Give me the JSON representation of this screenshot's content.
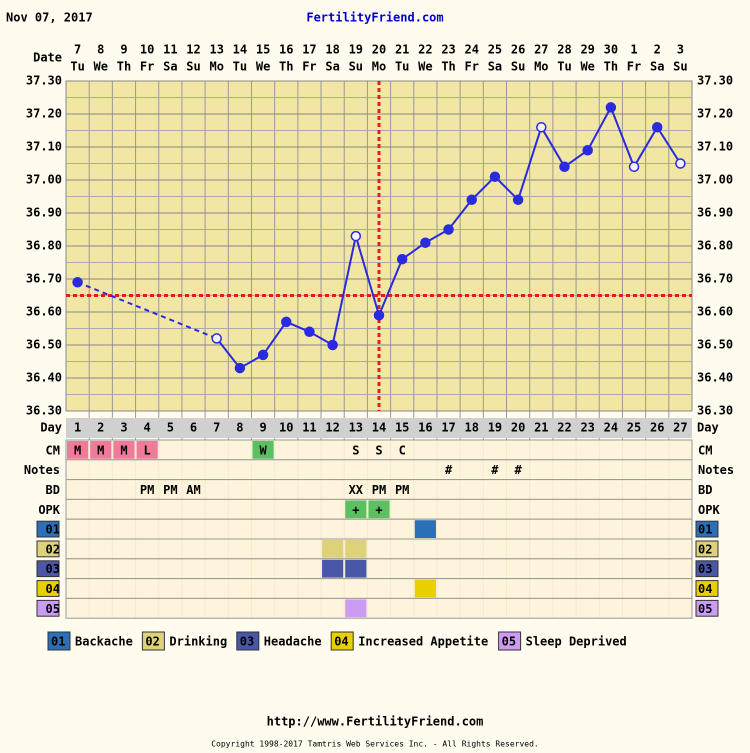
{
  "header": {
    "date": "Nov 07, 2017",
    "site": "FertilityFriend.com"
  },
  "chart_data": {
    "type": "line",
    "x_label": "Date",
    "day_label": "Day",
    "dates": [
      7,
      8,
      9,
      10,
      11,
      12,
      13,
      14,
      15,
      16,
      17,
      18,
      19,
      20,
      21,
      22,
      23,
      24,
      25,
      26,
      27,
      28,
      29,
      30,
      1,
      2,
      3
    ],
    "weekdays": [
      "Tu",
      "We",
      "Th",
      "Fr",
      "Sa",
      "Su",
      "Mo",
      "Tu",
      "We",
      "Th",
      "Fr",
      "Sa",
      "Su",
      "Mo",
      "Tu",
      "We",
      "Th",
      "Fr",
      "Sa",
      "Su",
      "Mo",
      "Tu",
      "We",
      "Th",
      "Fr",
      "Sa",
      "Su"
    ],
    "days": [
      1,
      2,
      3,
      4,
      5,
      6,
      7,
      8,
      9,
      10,
      11,
      12,
      13,
      14,
      15,
      16,
      17,
      18,
      19,
      20,
      21,
      22,
      23,
      24,
      25,
      26,
      27
    ],
    "values": [
      36.69,
      null,
      null,
      null,
      null,
      null,
      36.52,
      36.43,
      36.47,
      36.57,
      36.54,
      36.5,
      36.83,
      36.59,
      36.76,
      36.81,
      36.85,
      36.94,
      37.01,
      36.94,
      37.16,
      37.04,
      37.09,
      37.22,
      37.04,
      37.16,
      37.05
    ],
    "marker_open": [
      false,
      false,
      false,
      false,
      false,
      false,
      true,
      false,
      false,
      false,
      false,
      false,
      true,
      false,
      false,
      false,
      false,
      false,
      false,
      false,
      true,
      false,
      false,
      false,
      true,
      false,
      true
    ],
    "color": "#2a2ae0",
    "ylim": [
      36.3,
      37.3
    ],
    "yticks": [
      {
        "value": 36.3,
        "label": "36.30"
      },
      {
        "value": 36.4,
        "label": "36.40"
      },
      {
        "value": 36.5,
        "label": "36.50"
      },
      {
        "value": 36.6,
        "label": "36.60"
      },
      {
        "value": 36.7,
        "label": "36.70"
      },
      {
        "value": 36.8,
        "label": "36.80"
      },
      {
        "value": 36.9,
        "label": "36.90"
      },
      {
        "value": 37.0,
        "label": "37.00"
      },
      {
        "value": 37.1,
        "label": "37.10"
      },
      {
        "value": 37.2,
        "label": "37.20"
      },
      {
        "value": 37.3,
        "label": "37.30"
      }
    ],
    "grid": true,
    "coverline": 36.65,
    "ovulation_day": 14,
    "marker_color": "#e02020"
  },
  "rows": [
    {
      "label": "CM",
      "cells": [
        {
          "day": 1,
          "text": "M",
          "color": "#f07a9a"
        },
        {
          "day": 2,
          "text": "M",
          "color": "#f07a9a"
        },
        {
          "day": 3,
          "text": "M",
          "color": "#f07a9a"
        },
        {
          "day": 4,
          "text": "L",
          "color": "#f07a9a"
        },
        {
          "day": 9,
          "text": "W",
          "color": "#5cc060"
        },
        {
          "day": 13,
          "text": "S"
        },
        {
          "day": 14,
          "text": "S"
        },
        {
          "day": 15,
          "text": "C"
        }
      ]
    },
    {
      "label": "Notes",
      "cells": [
        {
          "day": 17,
          "text": "#"
        },
        {
          "day": 19,
          "text": "#"
        },
        {
          "day": 20,
          "text": "#"
        }
      ]
    },
    {
      "label": "BD",
      "cells": [
        {
          "day": 4,
          "text": "PM"
        },
        {
          "day": 5,
          "text": "PM"
        },
        {
          "day": 6,
          "text": "AM"
        },
        {
          "day": 13,
          "text": "XX"
        },
        {
          "day": 14,
          "text": "PM"
        },
        {
          "day": 15,
          "text": "PM"
        }
      ]
    },
    {
      "label": "OPK",
      "cells": [
        {
          "day": 13,
          "text": "+",
          "color": "#5cc060"
        },
        {
          "day": 14,
          "text": "+",
          "color": "#5cc060"
        }
      ]
    },
    {
      "label": "01",
      "name": "Backache",
      "color": "#2a6fb8",
      "days": [
        16
      ]
    },
    {
      "label": "02",
      "name": "Drinking",
      "color": "#ddd27a",
      "days": [
        12,
        13
      ]
    },
    {
      "label": "03",
      "name": "Headache",
      "color": "#4a56a6",
      "days": [
        12,
        13
      ]
    },
    {
      "label": "04",
      "name": "Increased Appetite",
      "color": "#e8d000",
      "days": [
        16
      ]
    },
    {
      "label": "05",
      "name": "Sleep Deprived",
      "color": "#cc9cf2",
      "days": [
        13
      ]
    }
  ],
  "footer": {
    "url": "http://www.FertilityFriend.com",
    "copyright": "Copyright 1998-2017 Tamtris Web Services Inc. - All Rights Reserved."
  }
}
